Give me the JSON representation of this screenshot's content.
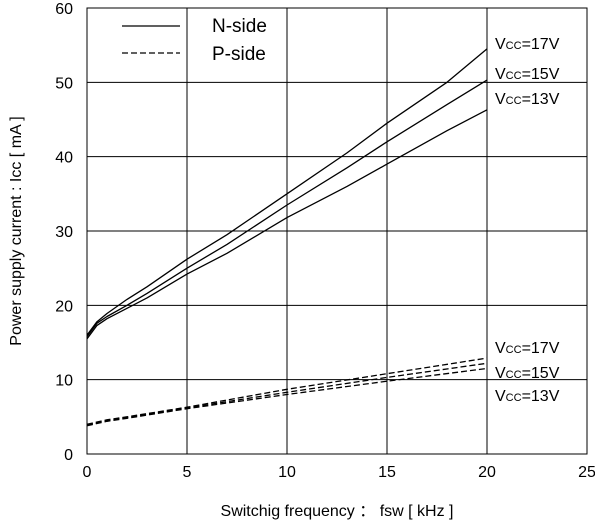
{
  "chart_data": {
    "type": "line",
    "xlabel": "Switchig frequency  ：  fsw [ kHz ]",
    "ylabel": "Power supply current : Icc [ mA ]",
    "xlim": [
      0,
      25
    ],
    "ylim": [
      0,
      60
    ],
    "x_ticks": [
      "0",
      "5",
      "10",
      "15",
      "20",
      "25"
    ],
    "y_ticks": [
      "0",
      "10",
      "20",
      "30",
      "40",
      "50",
      "60"
    ],
    "grid": true,
    "legend": {
      "placement": "top-left",
      "entries": [
        {
          "label": "N-side",
          "style": "solid"
        },
        {
          "label": "P-side",
          "style": "dashed"
        }
      ]
    },
    "series": [
      {
        "name": "N-side Vcc=17V",
        "style": "solid",
        "x": [
          0,
          0.5,
          1,
          2,
          3,
          5,
          7,
          10,
          13,
          15,
          18,
          20
        ],
        "y": [
          16,
          17.8,
          18.9,
          20.8,
          22.5,
          26.2,
          29.5,
          35.0,
          40.5,
          44.5,
          50.0,
          54.5
        ]
      },
      {
        "name": "N-side Vcc=15V",
        "style": "solid",
        "x": [
          0,
          0.5,
          1,
          2,
          3,
          5,
          7,
          10,
          13,
          15,
          18,
          20
        ],
        "y": [
          15.8,
          17.6,
          18.5,
          20.0,
          21.6,
          25.0,
          28.2,
          33.5,
          38.5,
          42.0,
          47.0,
          50.3
        ]
      },
      {
        "name": "N-side Vcc=13V",
        "style": "solid",
        "x": [
          0,
          0.5,
          1,
          2,
          3,
          5,
          7,
          10,
          13,
          15,
          18,
          20
        ],
        "y": [
          15.5,
          17.3,
          18.2,
          19.6,
          21.0,
          24.2,
          27.0,
          31.8,
          36.0,
          39.0,
          43.5,
          46.3
        ]
      },
      {
        "name": "P-side Vcc=17V",
        "style": "dashed",
        "x": [
          0,
          0.5,
          1,
          2,
          5,
          10,
          15,
          20
        ],
        "y": [
          4.0,
          4.3,
          4.6,
          5.0,
          6.3,
          8.7,
          10.8,
          12.9
        ]
      },
      {
        "name": "P-side Vcc=15V",
        "style": "dashed",
        "x": [
          0,
          0.5,
          1,
          2,
          5,
          10,
          15,
          20
        ],
        "y": [
          3.9,
          4.2,
          4.5,
          4.9,
          6.2,
          8.3,
          10.3,
          12.2
        ]
      },
      {
        "name": "P-side Vcc=13V",
        "style": "dashed",
        "x": [
          0,
          0.5,
          1,
          2,
          5,
          10,
          15,
          20
        ],
        "y": [
          3.8,
          4.1,
          4.4,
          4.8,
          6.1,
          8.0,
          9.8,
          11.5
        ]
      }
    ],
    "annotations": {
      "n_side": [
        {
          "prefix": "V",
          "sub": "CC",
          "suffix": "=17V"
        },
        {
          "prefix": "V",
          "sub": "CC",
          "suffix": "=15V"
        },
        {
          "prefix": "V",
          "sub": "CC",
          "suffix": "=13V"
        }
      ],
      "p_side": [
        {
          "prefix": "V",
          "sub": "CC",
          "suffix": "=17V"
        },
        {
          "prefix": "V",
          "sub": "CC",
          "suffix": "=15V"
        },
        {
          "prefix": "V",
          "sub": "CC",
          "suffix": "=13V"
        }
      ]
    }
  }
}
